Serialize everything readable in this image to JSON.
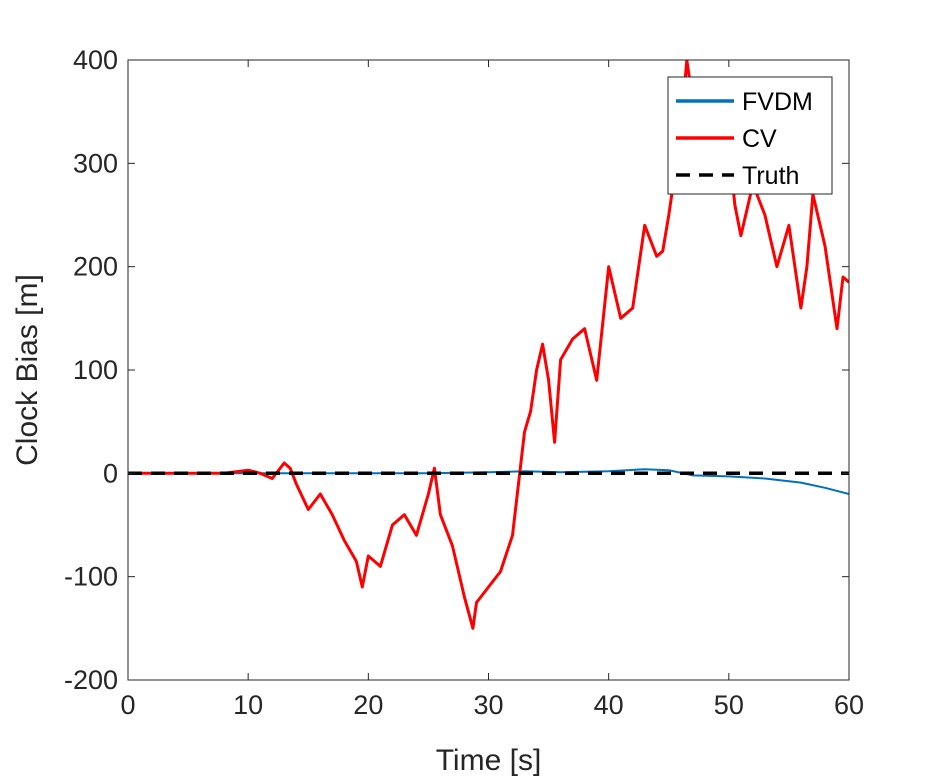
{
  "chart_data": {
    "type": "line",
    "xlabel": "Time [s]",
    "ylabel": "Clock Bias [m]",
    "xlim": [
      0,
      60
    ],
    "ylim": [
      -200,
      400
    ],
    "xticks": [
      0,
      10,
      20,
      30,
      40,
      50,
      60
    ],
    "yticks": [
      -200,
      -100,
      0,
      100,
      200,
      300,
      400
    ],
    "grid": false,
    "legend_position": "top-right",
    "series": [
      {
        "name": "FVDM",
        "color": "#0072BD",
        "style": "solid",
        "x": [
          0,
          5,
          10,
          15,
          20,
          25,
          30,
          33,
          36,
          40,
          43,
          45,
          47,
          50,
          53,
          56,
          58,
          60
        ],
        "y": [
          0,
          0,
          0,
          0,
          0,
          0,
          1,
          2,
          1,
          2,
          4,
          3,
          -2,
          -3,
          -5,
          -9,
          -14,
          -20
        ]
      },
      {
        "name": "CV",
        "color": "#FF0000",
        "style": "solid",
        "x": [
          0,
          5,
          8,
          10,
          11,
          12,
          13,
          13.5,
          14,
          15,
          16,
          17,
          18,
          19,
          19.5,
          20,
          21,
          22,
          23,
          24,
          25,
          25.5,
          26,
          27,
          28,
          28.7,
          29,
          30,
          31,
          32,
          32.5,
          33,
          33.5,
          34,
          34.5,
          35,
          35.5,
          36,
          37,
          38,
          39,
          40,
          41,
          42,
          43,
          44,
          44.5,
          45,
          46,
          46.5,
          47,
          48,
          49,
          50,
          50.5,
          51,
          52,
          53,
          54,
          55,
          56,
          56.5,
          57,
          58,
          59,
          59.5,
          60
        ],
        "y": [
          0,
          0,
          0,
          3,
          0,
          -5,
          10,
          5,
          -10,
          -35,
          -20,
          -40,
          -65,
          -85,
          -110,
          -80,
          -90,
          -50,
          -40,
          -60,
          -20,
          5,
          -40,
          -70,
          -120,
          -150,
          -125,
          -110,
          -95,
          -60,
          -10,
          40,
          60,
          100,
          125,
          90,
          30,
          110,
          130,
          140,
          90,
          200,
          150,
          160,
          240,
          210,
          215,
          250,
          330,
          400,
          360,
          330,
          300,
          320,
          260,
          230,
          280,
          250,
          200,
          240,
          160,
          200,
          270,
          220,
          140,
          190,
          185
        ]
      },
      {
        "name": "Truth",
        "color": "#000000",
        "style": "dashed",
        "x": [
          0,
          60
        ],
        "y": [
          0,
          0
        ]
      }
    ]
  }
}
